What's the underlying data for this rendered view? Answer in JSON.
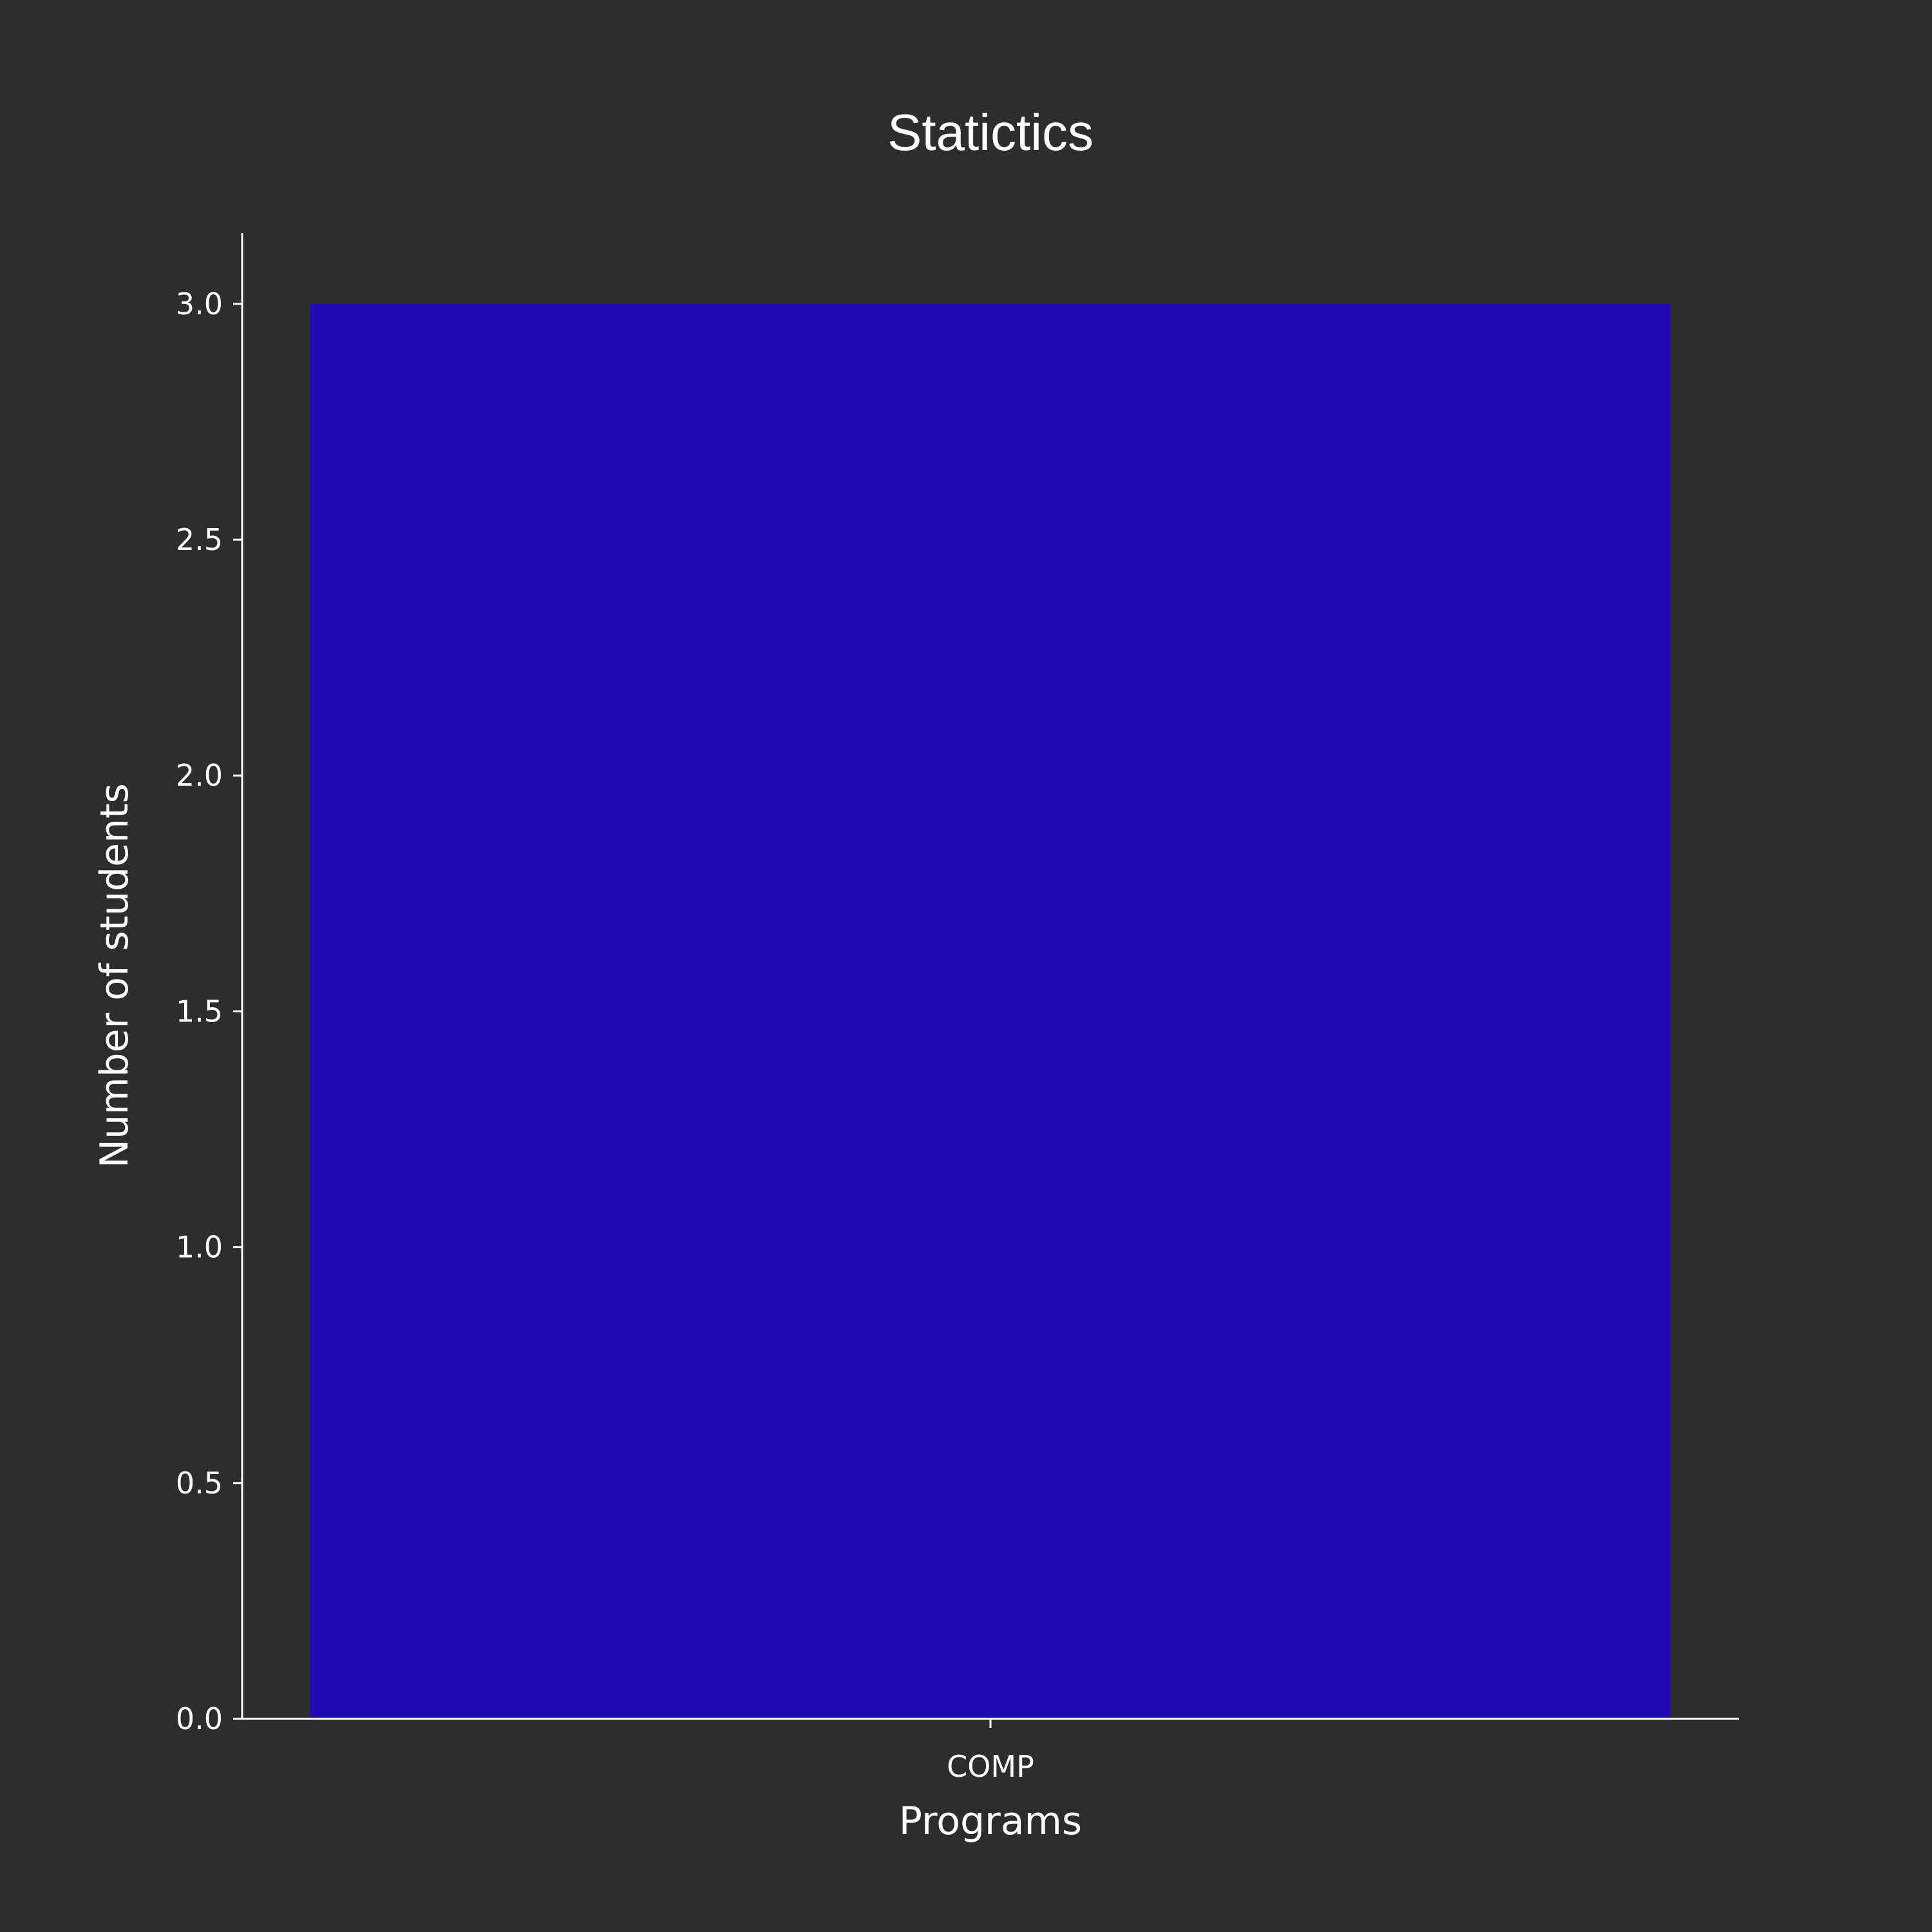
{
  "colors": {
    "background": "#2d2d2d",
    "bar": "#2109b8",
    "axis": "#ffffff",
    "text": "#ffffff"
  },
  "chart_data": {
    "type": "bar",
    "title": "Statictics",
    "xlabel": "Programs",
    "ylabel": "Number of students",
    "categories": [
      "COMP"
    ],
    "values": [
      3
    ],
    "ylim": [
      0,
      3.15
    ],
    "yticks": [
      "0.0",
      "0.5",
      "1.0",
      "1.5",
      "2.0",
      "2.5",
      "3.0"
    ],
    "grid": false,
    "legend": "none"
  }
}
